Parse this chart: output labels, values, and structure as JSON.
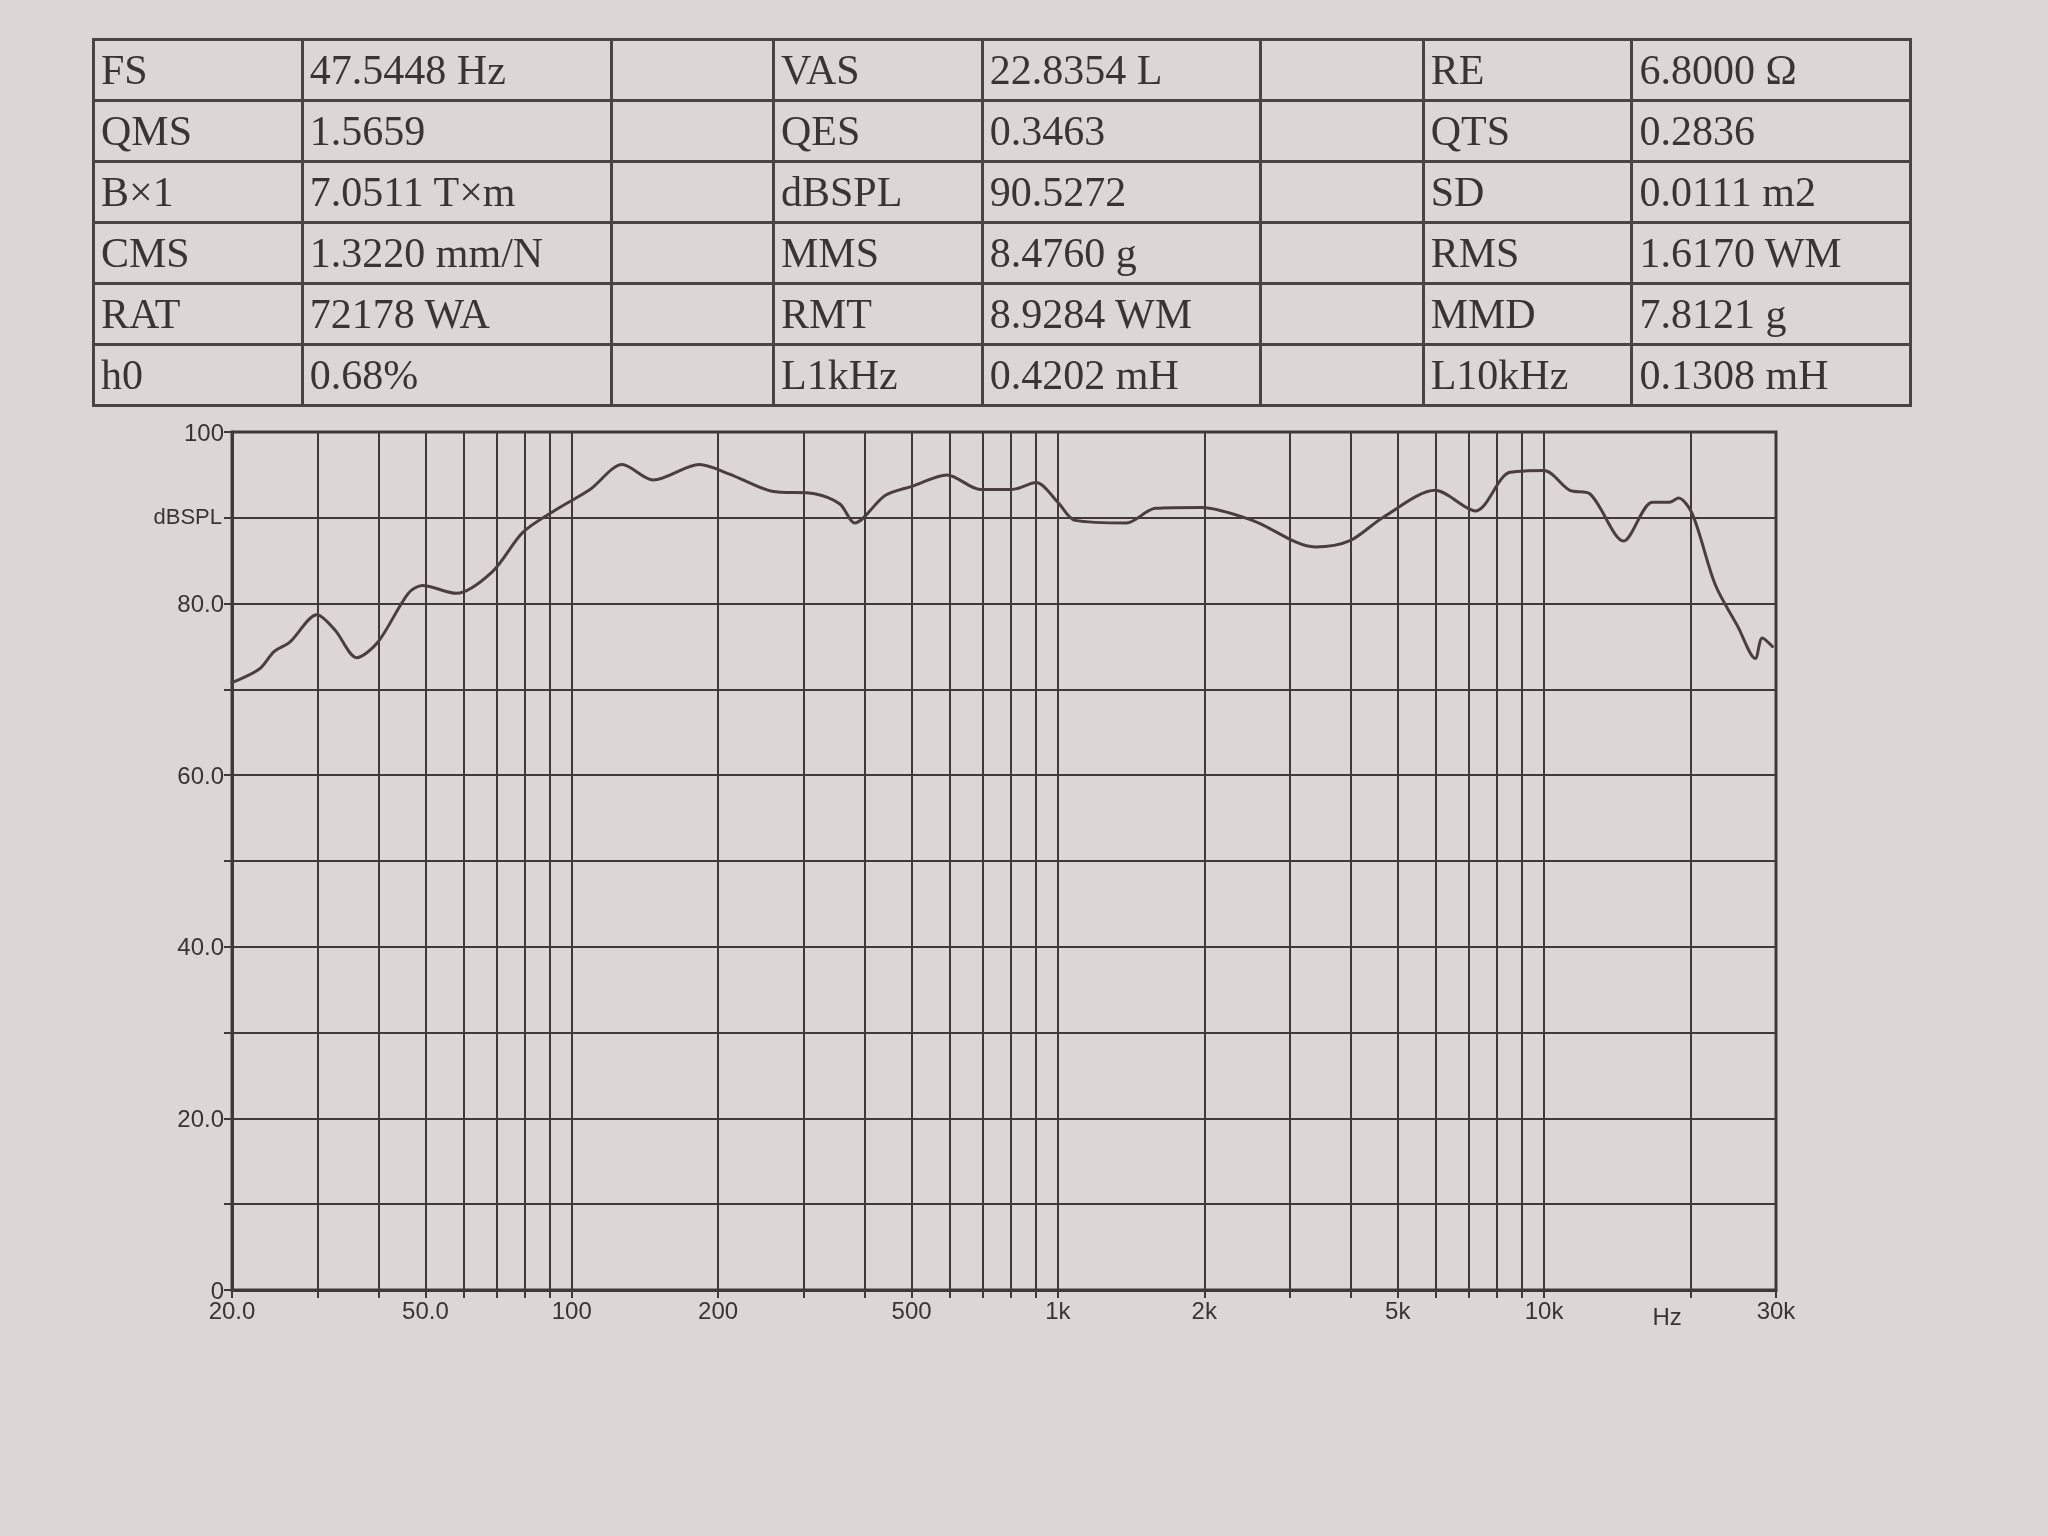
{
  "chart_data": [
    {
      "type": "other",
      "annotations": [
        "FS",
        "47.5448 Hz",
        "VAS",
        "22.8354 L",
        "RE",
        "6.8000 Ω",
        "QMS",
        "1.5659",
        "QES",
        "0.3463",
        "QTS",
        "0.2836",
        "B×1",
        "7.0511 T×m",
        "dBSPL",
        "90.5272",
        "SD",
        "0.0111 m2",
        "CMS",
        "1.3220 mm/N",
        "MMS",
        "8.4760 g",
        "RMS",
        "1.6170 WM",
        "RAT",
        "72178 WA",
        "RMT",
        "8.9284 WM",
        "MMD",
        "7.8121 g",
        "h0",
        "0.68%",
        "L1kHz",
        "0.4202 mH",
        "L10kHz",
        "0.1308 mH"
      ]
    },
    {
      "type": "line",
      "xlabel": "Hz",
      "ylabel": "dBSPL",
      "log": "x",
      "grid": true,
      "marker": "none",
      "xlim": [
        20,
        30000
      ],
      "ylim": [
        0,
        100
      ],
      "xticks": [
        {
          "value": 20,
          "label": "20.0"
        },
        {
          "value": 30,
          "label": null
        },
        {
          "value": 40,
          "label": null
        },
        {
          "value": 50,
          "label": "50.0"
        },
        {
          "value": 60,
          "label": null
        },
        {
          "value": 70,
          "label": null
        },
        {
          "value": 80,
          "label": null
        },
        {
          "value": 90,
          "label": null
        },
        100,
        200,
        {
          "value": 300,
          "label": null
        },
        {
          "value": 400,
          "label": null
        },
        500,
        {
          "value": 600,
          "label": null
        },
        {
          "value": 700,
          "label": null
        },
        {
          "value": 800,
          "label": null
        },
        {
          "value": 900,
          "label": null
        },
        {
          "value": 1000,
          "label": "1k"
        },
        {
          "value": 2000,
          "label": "2k"
        },
        {
          "value": 3000,
          "label": null
        },
        {
          "value": 4000,
          "label": null
        },
        {
          "value": 5000,
          "label": "5k"
        },
        {
          "value": 6000,
          "label": null
        },
        {
          "value": 7000,
          "label": null
        },
        {
          "value": 8000,
          "label": null
        },
        {
          "value": 9000,
          "label": null
        },
        {
          "value": 10000,
          "label": "10k"
        },
        {
          "value": 20000,
          "label": null
        },
        {
          "value": 30000,
          "label": "30k"
        }
      ],
      "yticks": [
        0,
        {
          "value": 10,
          "label": null
        },
        {
          "value": 20,
          "label": "20.0"
        },
        {
          "value": 30,
          "label": null
        },
        {
          "value": 40,
          "label": "40.0"
        },
        {
          "value": 50,
          "label": null
        },
        {
          "value": 60,
          "label": "60.0"
        },
        {
          "value": 70,
          "label": null
        },
        {
          "value": 80,
          "label": "80.0"
        },
        {
          "value": 90,
          "label": null
        },
        100
      ],
      "series": [
        {
          "color": "#4a3f3c",
          "x": [
            20,
            22.8,
            24.4,
            26.3,
            29.9,
            32.6,
            36.1,
            39.9,
            46.1,
            49.3,
            57.9,
            68.6,
            79.3,
            91.9,
            109,
            127,
            147,
            183,
            211,
            258,
            316,
            356,
            382,
            441,
            503,
            591,
            693,
            804,
            902,
            1000,
            1084,
            1384,
            1585,
            1969,
            2512,
            3382,
            3978,
            4677,
            5975,
            7226,
            8509,
            10000,
            11300,
            12420,
            14580,
            16700,
            18100,
            18900,
            20200,
            22500,
            25000,
            27200,
            28100,
            29500
          ],
          "values": [
            70.8,
            72.4,
            74.4,
            75.5,
            78.7,
            76.9,
            73.7,
            75.5,
            81.2,
            82.1,
            81.2,
            83.7,
            88.3,
            90.8,
            93.3,
            96.2,
            94.4,
            96.2,
            95.1,
            93.1,
            92.8,
            91.6,
            89.4,
            92.6,
            93.7,
            95.0,
            93.3,
            93.3,
            94.1,
            91.8,
            89.7,
            89.4,
            91.1,
            91.2,
            89.7,
            86.6,
            87.3,
            90.1,
            93.2,
            90.8,
            95.3,
            95.5,
            93.2,
            92.8,
            87.3,
            91.8,
            91.8,
            92.3,
            90.4,
            82.2,
            77.4,
            73.6,
            76.0,
            75.0
          ]
        }
      ]
    }
  ]
}
